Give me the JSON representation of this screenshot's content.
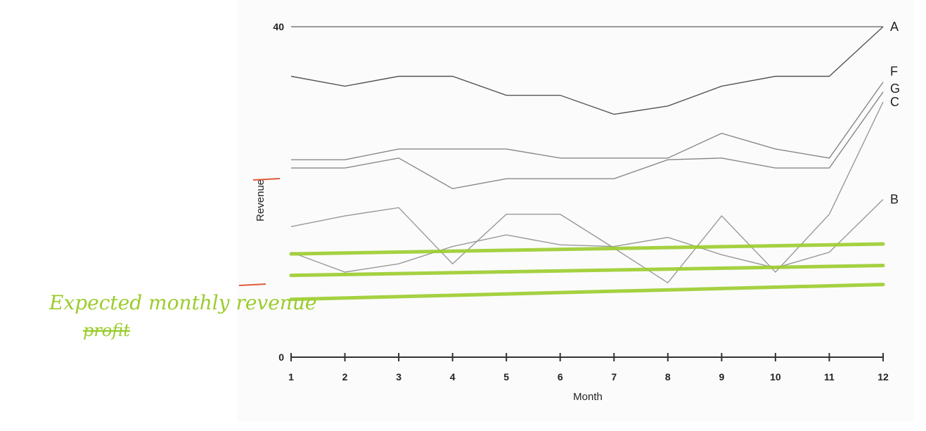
{
  "chart_data": {
    "type": "line",
    "title": "",
    "xlabel": "Month",
    "ylabel": "Revenue",
    "x": [
      1,
      2,
      3,
      4,
      5,
      6,
      7,
      8,
      9,
      10,
      11,
      12
    ],
    "xlim": [
      1,
      12
    ],
    "ylim": [
      0,
      40
    ],
    "yticks": [
      0,
      40
    ],
    "grid": false,
    "legend": "inline labels at right end of lines",
    "series": [
      {
        "name": "A",
        "color": "#777777",
        "values": [
          40,
          40,
          40,
          40,
          40,
          40,
          40,
          40,
          40,
          40,
          40,
          40
        ]
      },
      {
        "name": "",
        "color": "#555555",
        "values": [
          34,
          32.8,
          34,
          34,
          31.7,
          31.7,
          29.4,
          30.4,
          32.8,
          34,
          34,
          40
        ]
      },
      {
        "name": "F",
        "color": "#888888",
        "values": [
          23.9,
          23.9,
          25.2,
          25.2,
          25.2,
          24.1,
          24.1,
          24.1,
          27.1,
          25.2,
          24.1,
          33.3
        ]
      },
      {
        "name": "G",
        "color": "#888888",
        "values": [
          22.9,
          22.9,
          24.1,
          20.4,
          21.6,
          21.6,
          21.6,
          23.9,
          24.1,
          22.9,
          22.9,
          32.1
        ]
      },
      {
        "name": "C",
        "color": "#999999",
        "values": [
          15.8,
          17.1,
          18.1,
          11.3,
          17.3,
          17.3,
          13.2,
          9.0,
          17.1,
          10.3,
          17.3,
          30.9
        ]
      },
      {
        "name": "B",
        "color": "#999999",
        "values": [
          12.7,
          10.3,
          11.3,
          13.4,
          14.8,
          13.6,
          13.4,
          14.5,
          12.4,
          10.8,
          12.7,
          19.1
        ]
      }
    ],
    "annotations": {
      "note_text": "Expected monthly revenue",
      "note_strikethrough": "profit",
      "note_color": "#9bcc2c",
      "expected_lines": [
        {
          "x": [
            1,
            12
          ],
          "values": [
            12.5,
            13.7
          ]
        },
        {
          "x": [
            1,
            12
          ],
          "values": [
            9.9,
            11.1
          ]
        },
        {
          "x": [
            1,
            12
          ],
          "values": [
            7.0,
            8.8
          ]
        }
      ]
    }
  }
}
